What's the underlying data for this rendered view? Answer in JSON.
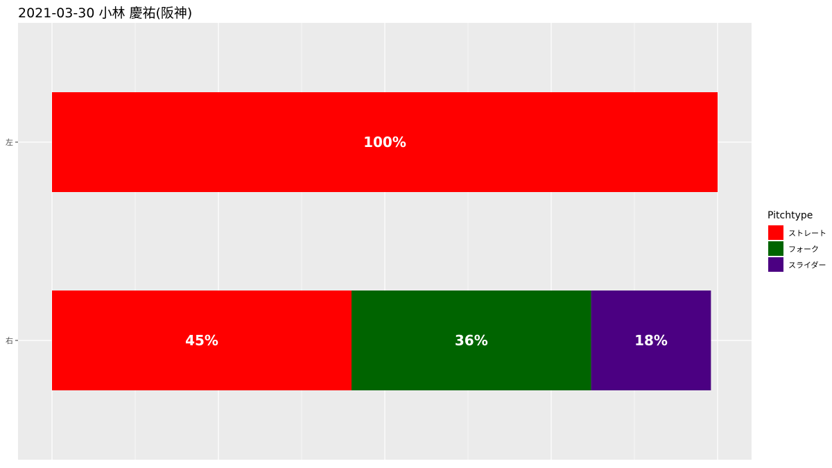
{
  "title": "2021-03-30 小林 慶祐(阪神)",
  "chart_data": {
    "type": "bar",
    "orientation": "horizontal",
    "stacked": true,
    "categories": [
      "左",
      "右"
    ],
    "series": [
      {
        "name": "ストレート",
        "color": "#FF0000",
        "values": [
          100,
          45
        ]
      },
      {
        "name": "フォーク",
        "color": "#006400",
        "values": [
          0,
          36
        ]
      },
      {
        "name": "スライダー",
        "color": "#4B0082",
        "values": [
          0,
          18
        ]
      }
    ],
    "data_labels": [
      [
        "100%",
        "",
        ""
      ],
      [
        "45%",
        "36%",
        "18%"
      ]
    ],
    "xlim": [
      0,
      100
    ],
    "legend": {
      "title": "Pitchtype",
      "position": "right"
    },
    "grid": true
  }
}
